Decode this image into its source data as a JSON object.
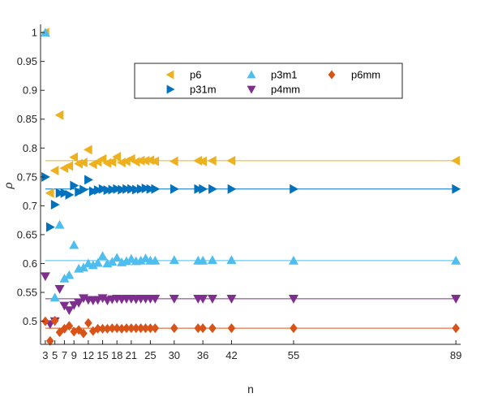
{
  "chart_data": {
    "type": "scatter",
    "title": "",
    "xlabel": "n",
    "ylabel": "ρ",
    "xlim": [
      2,
      90
    ],
    "ylim": [
      0.46,
      1.01
    ],
    "x_ticks": [
      3,
      5,
      7,
      9,
      12,
      15,
      18,
      21,
      25,
      30,
      36,
      42,
      55,
      89
    ],
    "x_tick_labels": [
      "3",
      "5",
      "7",
      "9",
      "12",
      "15",
      "18",
      "21",
      "25",
      "30",
      "36",
      "42",
      "55",
      "89"
    ],
    "y_ticks": [
      0.5,
      0.55,
      0.6,
      0.65,
      0.7,
      0.75,
      0.8,
      0.85,
      0.9,
      0.95,
      1.0
    ],
    "y_tick_labels": [
      "0.5",
      "0.55",
      "0.6",
      "0.65",
      "0.7",
      "0.75",
      "0.8",
      "0.85",
      "0.9",
      "0.95",
      "1"
    ],
    "grid": false,
    "legend_position": "top-center",
    "series": [
      {
        "name": "p6",
        "color": "#EDB120",
        "marker": "triangle-left",
        "asymptote": 0.778,
        "points": [
          [
            3,
            1.0
          ],
          [
            4,
            0.722
          ],
          [
            5,
            0.761
          ],
          [
            6,
            0.857
          ],
          [
            7,
            0.765
          ],
          [
            8,
            0.769
          ],
          [
            9,
            0.784
          ],
          [
            10,
            0.773
          ],
          [
            11,
            0.775
          ],
          [
            12,
            0.797
          ],
          [
            13,
            0.772
          ],
          [
            14,
            0.776
          ],
          [
            15,
            0.781
          ],
          [
            16,
            0.774
          ],
          [
            17,
            0.776
          ],
          [
            18,
            0.785
          ],
          [
            19,
            0.775
          ],
          [
            20,
            0.777
          ],
          [
            21,
            0.781
          ],
          [
            22,
            0.776
          ],
          [
            23,
            0.778
          ],
          [
            24,
            0.778
          ],
          [
            25,
            0.779
          ],
          [
            26,
            0.777
          ],
          [
            30,
            0.777
          ],
          [
            35,
            0.778
          ],
          [
            36,
            0.777
          ],
          [
            38,
            0.778
          ],
          [
            42,
            0.778
          ],
          [
            89,
            0.778
          ]
        ]
      },
      {
        "name": "p31m",
        "color": "#0072BD",
        "marker": "triangle-right",
        "asymptote": 0.729,
        "points": [
          [
            3,
            0.75
          ],
          [
            4,
            0.663
          ],
          [
            5,
            0.702
          ],
          [
            6,
            0.722
          ],
          [
            7,
            0.722
          ],
          [
            8,
            0.719
          ],
          [
            9,
            0.735
          ],
          [
            10,
            0.724
          ],
          [
            11,
            0.728
          ],
          [
            12,
            0.745
          ],
          [
            13,
            0.725
          ],
          [
            14,
            0.727
          ],
          [
            15,
            0.729
          ],
          [
            16,
            0.727
          ],
          [
            17,
            0.728
          ],
          [
            18,
            0.729
          ],
          [
            19,
            0.728
          ],
          [
            20,
            0.729
          ],
          [
            21,
            0.729
          ],
          [
            22,
            0.728
          ],
          [
            23,
            0.729
          ],
          [
            24,
            0.73
          ],
          [
            25,
            0.729
          ],
          [
            26,
            0.729
          ],
          [
            30,
            0.729
          ],
          [
            35,
            0.729
          ],
          [
            36,
            0.729
          ],
          [
            38,
            0.729
          ],
          [
            42,
            0.729
          ],
          [
            55,
            0.729
          ],
          [
            89,
            0.729
          ]
        ]
      },
      {
        "name": "p3m1",
        "color": "#4DBEEE",
        "marker": "triangle-up",
        "asymptote": 0.605,
        "points": [
          [
            3,
            1.0
          ],
          [
            5,
            0.541
          ],
          [
            6,
            0.667
          ],
          [
            7,
            0.574
          ],
          [
            8,
            0.58
          ],
          [
            9,
            0.632
          ],
          [
            10,
            0.591
          ],
          [
            11,
            0.593
          ],
          [
            12,
            0.6
          ],
          [
            13,
            0.597
          ],
          [
            14,
            0.601
          ],
          [
            15,
            0.613
          ],
          [
            16,
            0.6
          ],
          [
            17,
            0.603
          ],
          [
            18,
            0.61
          ],
          [
            19,
            0.602
          ],
          [
            20,
            0.604
          ],
          [
            21,
            0.608
          ],
          [
            22,
            0.604
          ],
          [
            23,
            0.605
          ],
          [
            24,
            0.609
          ],
          [
            25,
            0.605
          ],
          [
            26,
            0.605
          ],
          [
            30,
            0.606
          ],
          [
            35,
            0.605
          ],
          [
            36,
            0.605
          ],
          [
            38,
            0.606
          ],
          [
            42,
            0.606
          ],
          [
            55,
            0.605
          ],
          [
            89,
            0.605
          ]
        ]
      },
      {
        "name": "p4mm",
        "color": "#7E2F8E",
        "marker": "triangle-down",
        "asymptote": 0.539,
        "points": [
          [
            3,
            0.578
          ],
          [
            4,
            0.495
          ],
          [
            5,
            0.5
          ],
          [
            6,
            0.556
          ],
          [
            7,
            0.527
          ],
          [
            8,
            0.519
          ],
          [
            9,
            0.528
          ],
          [
            10,
            0.532
          ],
          [
            11,
            0.54
          ],
          [
            12,
            0.537
          ],
          [
            13,
            0.536
          ],
          [
            14,
            0.537
          ],
          [
            15,
            0.54
          ],
          [
            16,
            0.536
          ],
          [
            17,
            0.538
          ],
          [
            18,
            0.539
          ],
          [
            19,
            0.538
          ],
          [
            20,
            0.539
          ],
          [
            21,
            0.539
          ],
          [
            22,
            0.538
          ],
          [
            23,
            0.539
          ],
          [
            24,
            0.539
          ],
          [
            25,
            0.539
          ],
          [
            26,
            0.539
          ],
          [
            30,
            0.539
          ],
          [
            35,
            0.539
          ],
          [
            36,
            0.539
          ],
          [
            38,
            0.539
          ],
          [
            42,
            0.539
          ],
          [
            55,
            0.539
          ],
          [
            89,
            0.539
          ]
        ]
      },
      {
        "name": "p6mm",
        "color": "#D95319",
        "marker": "diamond",
        "asymptote": 0.488,
        "points": [
          [
            3,
            0.5
          ],
          [
            4,
            0.466
          ],
          [
            5,
            0.501
          ],
          [
            6,
            0.481
          ],
          [
            7,
            0.487
          ],
          [
            8,
            0.492
          ],
          [
            9,
            0.482
          ],
          [
            10,
            0.485
          ],
          [
            11,
            0.479
          ],
          [
            12,
            0.497
          ],
          [
            13,
            0.483
          ],
          [
            14,
            0.487
          ],
          [
            15,
            0.487
          ],
          [
            16,
            0.487
          ],
          [
            17,
            0.488
          ],
          [
            18,
            0.488
          ],
          [
            19,
            0.487
          ],
          [
            20,
            0.488
          ],
          [
            21,
            0.488
          ],
          [
            22,
            0.488
          ],
          [
            23,
            0.488
          ],
          [
            24,
            0.488
          ],
          [
            25,
            0.488
          ],
          [
            26,
            0.488
          ],
          [
            30,
            0.488
          ],
          [
            35,
            0.488
          ],
          [
            36,
            0.488
          ],
          [
            38,
            0.488
          ],
          [
            42,
            0.488
          ],
          [
            55,
            0.488
          ],
          [
            89,
            0.488
          ]
        ]
      }
    ],
    "legend_layout": [
      [
        "p6",
        "p3m1",
        "p6mm"
      ],
      [
        "p31m",
        "p4mm"
      ]
    ]
  }
}
